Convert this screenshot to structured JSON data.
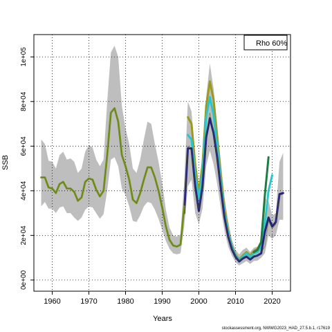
{
  "chart_data": {
    "type": "line",
    "ylabel": "SSB",
    "xlabel": "Years",
    "xlim": [
      1955,
      2025
    ],
    "ylim": [
      0,
      100000
    ],
    "x_ticks": [
      1960,
      1970,
      1980,
      1990,
      2000,
      2010,
      2020
    ],
    "y_ticks": [
      0,
      20000,
      40000,
      60000,
      80000,
      100000
    ],
    "y_tick_labels": [
      "0e+00",
      "2e+04",
      "4e+04",
      "6e+04",
      "8e+04",
      "1e+05"
    ],
    "grid": true,
    "legend": {
      "text": "Rho 60%",
      "position": "top-right"
    },
    "credit": "stockassessment.org, NWWG2023_HAD_27.5.b.1, r17619",
    "band_color": "#bebebe",
    "x": [
      1957,
      1958,
      1959,
      1960,
      1961,
      1962,
      1963,
      1964,
      1965,
      1966,
      1967,
      1968,
      1969,
      1970,
      1971,
      1972,
      1973,
      1974,
      1975,
      1976,
      1977,
      1978,
      1979,
      1980,
      1981,
      1982,
      1983,
      1984,
      1985,
      1986,
      1987,
      1988,
      1989,
      1990,
      1991,
      1992,
      1993,
      1994,
      1995,
      1996,
      1997,
      1998,
      1999,
      2000,
      2001,
      2002,
      2003,
      2004,
      2005,
      2006,
      2007,
      2008,
      2009,
      2010,
      2011,
      2012,
      2013,
      2014,
      2015,
      2016,
      2017,
      2018,
      2019,
      2020,
      2021,
      2022,
      2023
    ],
    "ssb": [
      46000,
      46000,
      41500,
      41000,
      39000,
      43000,
      44000,
      41000,
      41000,
      39500,
      35500,
      37000,
      44000,
      45500,
      45000,
      40500,
      37500,
      40000,
      56000,
      75000,
      77000,
      71000,
      56000,
      51000,
      45000,
      36000,
      34500,
      39000,
      45000,
      50500,
      50500,
      46000,
      40000,
      32500,
      24000,
      18000,
      15500,
      15000,
      15500,
      32000,
      60000,
      58000,
      40000,
      32000,
      42000,
      65000,
      75000,
      67000,
      55000,
      42000,
      29000,
      20000,
      14000,
      10500,
      8500,
      10000,
      11000,
      9500,
      11000,
      11000,
      12500,
      15000,
      26500,
      23000,
      25000,
      38000,
      38500
    ],
    "ci_low": [
      33000,
      35000,
      32000,
      32000,
      30000,
      32500,
      33000,
      30000,
      30000,
      28000,
      26500,
      28000,
      31500,
      33000,
      32500,
      30000,
      27500,
      29500,
      40000,
      54000,
      55000,
      51000,
      41000,
      38000,
      33000,
      26500,
      26000,
      29000,
      33000,
      35000,
      34500,
      31500,
      27500,
      22500,
      17500,
      14000,
      12000,
      11500,
      12000,
      24000,
      42000,
      45000,
      30000,
      25000,
      32000,
      51000,
      58000,
      52000,
      43000,
      32000,
      22000,
      15000,
      11000,
      8000,
      6500,
      7500,
      8500,
      7200,
      8500,
      8700,
      10000,
      12000,
      20000,
      18500,
      20000,
      27000,
      27000
    ],
    "ci_high": [
      63000,
      61000,
      53500,
      53000,
      50000,
      56000,
      57500,
      54000,
      54500,
      53000,
      48000,
      50000,
      57500,
      60500,
      59500,
      54000,
      51000,
      54000,
      80000,
      102000,
      105000,
      100000,
      78000,
      68000,
      61000,
      50000,
      48000,
      54000,
      63000,
      71000,
      70000,
      61000,
      53000,
      43500,
      31500,
      23500,
      20000,
      19500,
      20500,
      44000,
      80000,
      75500,
      55000,
      42000,
      56000,
      82000,
      97000,
      86000,
      70000,
      53000,
      37000,
      26500,
      18000,
      13500,
      11500,
      13500,
      14500,
      12500,
      14500,
      15000,
      17000,
      21000,
      35500,
      29000,
      30000,
      53000,
      57000
    ],
    "series": [
      {
        "color": "#9a9a20",
        "points": [
          [
            1997,
            73000
          ],
          [
            1998,
            70000
          ],
          [
            1999,
            52000
          ],
          [
            2000,
            39000
          ],
          [
            2001,
            52000
          ],
          [
            2002,
            78000
          ],
          [
            2003,
            89000
          ],
          [
            2004,
            81000
          ],
          [
            2005,
            64000
          ],
          [
            2006,
            47000
          ],
          [
            2007,
            32000
          ],
          [
            2008,
            22000
          ],
          [
            2009,
            15500
          ],
          [
            2010,
            11500
          ],
          [
            2011,
            9200
          ],
          [
            2012,
            11000
          ],
          [
            2013,
            12500
          ],
          [
            2014,
            11000
          ],
          [
            2015,
            13000
          ],
          [
            2016,
            14000
          ],
          [
            2017,
            17000
          ],
          [
            2018,
            36000
          ]
        ]
      },
      {
        "color": "#2ec4cc",
        "points": [
          [
            1997,
            65000
          ],
          [
            1998,
            63000
          ],
          [
            1999,
            47000
          ],
          [
            2000,
            36000
          ],
          [
            2001,
            48000
          ],
          [
            2002,
            73000
          ],
          [
            2003,
            82000
          ],
          [
            2004,
            74000
          ],
          [
            2005,
            60000
          ],
          [
            2006,
            44000
          ],
          [
            2007,
            30000
          ],
          [
            2008,
            21000
          ],
          [
            2009,
            15000
          ],
          [
            2010,
            11000
          ],
          [
            2011,
            9000
          ],
          [
            2012,
            10500
          ],
          [
            2013,
            12000
          ],
          [
            2014,
            10300
          ],
          [
            2015,
            12000
          ],
          [
            2016,
            12500
          ],
          [
            2017,
            15000
          ],
          [
            2018,
            25000
          ],
          [
            2019,
            40000
          ],
          [
            2020,
            47000
          ]
        ]
      },
      {
        "color": "#1f7a44",
        "points": [
          [
            2015,
            12500
          ],
          [
            2016,
            13500
          ],
          [
            2017,
            17000
          ],
          [
            2018,
            38000
          ],
          [
            2019,
            55000
          ]
        ]
      },
      {
        "color": "#23237a",
        "points": [
          [
            1996,
            30000
          ],
          [
            1997,
            59000
          ],
          [
            1998,
            59000
          ],
          [
            1999,
            42000
          ],
          [
            2000,
            31000
          ],
          [
            2001,
            42000
          ],
          [
            2002,
            64000
          ],
          [
            2003,
            72500
          ],
          [
            2004,
            66000
          ],
          [
            2005,
            55000
          ],
          [
            2006,
            41000
          ],
          [
            2007,
            28000
          ],
          [
            2008,
            19500
          ],
          [
            2009,
            13800
          ],
          [
            2010,
            10400
          ],
          [
            2011,
            8300
          ],
          [
            2012,
            9700
          ],
          [
            2013,
            10500
          ],
          [
            2014,
            9200
          ],
          [
            2015,
            10500
          ],
          [
            2016,
            11000
          ],
          [
            2017,
            12000
          ],
          [
            2018,
            21500
          ],
          [
            2019,
            28000
          ],
          [
            2020,
            24000
          ],
          [
            2021,
            26000
          ],
          [
            2022,
            38500
          ],
          [
            2023,
            39000
          ]
        ]
      },
      {
        "color": "#7a9a2a",
        "points": [
          [
            1957,
            46000
          ],
          [
            1958,
            46000
          ],
          [
            1959,
            41500
          ],
          [
            1960,
            41000
          ],
          [
            1961,
            39000
          ],
          [
            1962,
            43000
          ],
          [
            1963,
            44000
          ],
          [
            1964,
            41000
          ],
          [
            1965,
            41000
          ],
          [
            1966,
            39500
          ],
          [
            1967,
            35500
          ],
          [
            1968,
            37000
          ],
          [
            1969,
            44000
          ],
          [
            1970,
            45500
          ],
          [
            1971,
            45000
          ],
          [
            1972,
            40500
          ],
          [
            1973,
            37500
          ],
          [
            1974,
            40000
          ],
          [
            1975,
            56000
          ],
          [
            1976,
            75000
          ],
          [
            1977,
            77000
          ],
          [
            1978,
            71000
          ],
          [
            1979,
            56000
          ],
          [
            1980,
            51000
          ],
          [
            1981,
            45000
          ],
          [
            1982,
            36000
          ],
          [
            1983,
            34500
          ],
          [
            1984,
            39000
          ],
          [
            1985,
            45000
          ],
          [
            1986,
            50500
          ],
          [
            1987,
            50500
          ],
          [
            1988,
            46000
          ],
          [
            1989,
            40000
          ],
          [
            1990,
            32500
          ],
          [
            1991,
            24000
          ],
          [
            1992,
            18000
          ],
          [
            1993,
            15500
          ],
          [
            1994,
            15000
          ],
          [
            1995,
            16000
          ],
          [
            1996,
            33000
          ]
        ]
      }
    ]
  }
}
